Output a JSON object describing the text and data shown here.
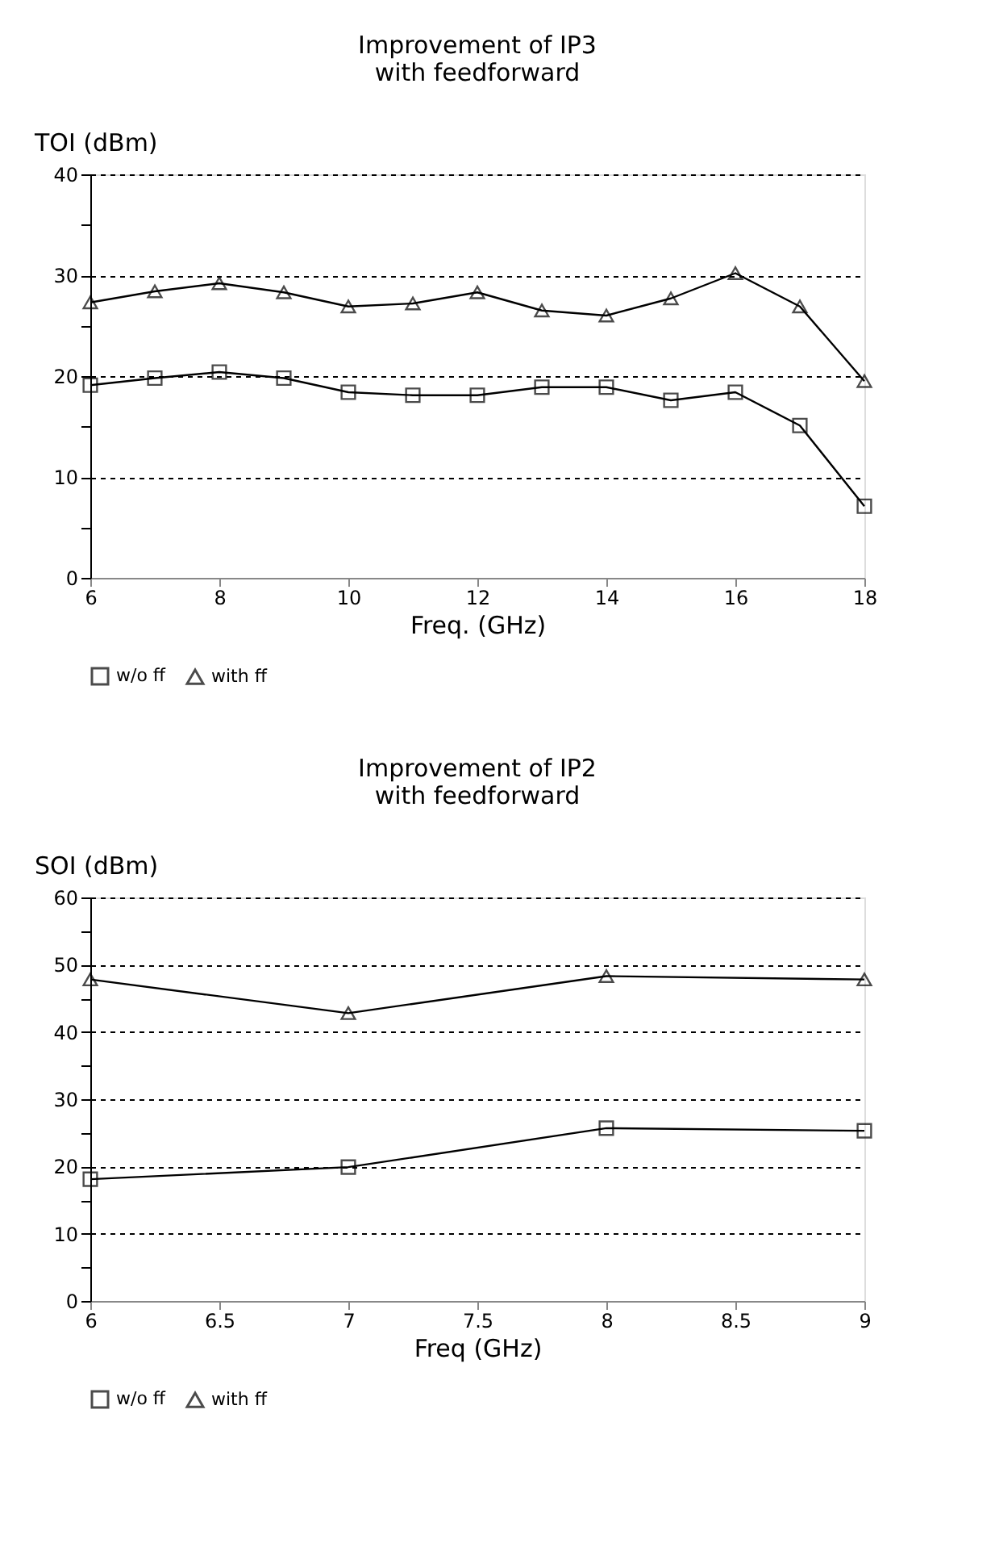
{
  "chart_data": [
    {
      "type": "line",
      "title": [
        "Improvement of IP3",
        "with feedforward"
      ],
      "xlabel": "Freq. (GHz)",
      "ylabel": "TOI (dBm)",
      "x": [
        6,
        7,
        8,
        9,
        10,
        11,
        12,
        13,
        14,
        15,
        16,
        17,
        18
      ],
      "series": [
        {
          "name": "w/o ff",
          "color": "#000000",
          "marker": "square",
          "values": [
            19.1,
            19.8,
            20.4,
            19.8,
            18.4,
            18.1,
            18.1,
            18.9,
            18.9,
            17.6,
            18.4,
            15.1,
            7.1
          ]
        },
        {
          "name": "with ff",
          "color": "#000000",
          "marker": "triangle",
          "values": [
            27.3,
            28.4,
            29.2,
            28.3,
            26.9,
            27.2,
            28.3,
            26.5,
            26.0,
            27.7,
            30.2,
            26.9,
            19.5
          ]
        }
      ],
      "xlim": [
        6,
        18
      ],
      "xticks": [
        6,
        8,
        10,
        12,
        14,
        16,
        18
      ],
      "ylim": [
        0,
        40
      ],
      "yticks": [
        0,
        {
          "value": 5,
          "label": null
        },
        10,
        {
          "value": 15,
          "label": null
        },
        20,
        {
          "value": 25,
          "label": null
        },
        30,
        {
          "value": 35,
          "label": null
        },
        40
      ],
      "grid": "y",
      "legend": "bottom",
      "line_style": "solid"
    },
    {
      "type": "line",
      "title": [
        "Improvement of IP2",
        "with feedforward"
      ],
      "xlabel": "Freq (GHz)",
      "ylabel": "SOI (dBm)",
      "x": [
        6,
        7,
        8,
        9
      ],
      "series": [
        {
          "name": "w/o ff",
          "color": "#000000",
          "marker": "square",
          "values": [
            18.1,
            19.9,
            25.7,
            25.3
          ]
        },
        {
          "name": "with ff",
          "color": "#000000",
          "marker": "triangle",
          "values": [
            47.8,
            42.8,
            48.3,
            47.8
          ]
        }
      ],
      "xlim": [
        6,
        9
      ],
      "xticks": [
        6,
        6.5,
        7,
        7.5,
        8,
        8.5,
        9
      ],
      "ylim": [
        0,
        60
      ],
      "yticks": [
        0,
        {
          "value": 5,
          "label": null
        },
        10,
        {
          "value": 15,
          "label": null
        },
        20,
        {
          "value": 25,
          "label": null
        },
        30,
        {
          "value": 35,
          "label": null
        },
        40,
        {
          "value": 45,
          "label": null
        },
        50,
        {
          "value": 55,
          "label": null
        },
        60
      ],
      "grid": "y",
      "legend": "bottom",
      "line_style": "solid"
    }
  ]
}
